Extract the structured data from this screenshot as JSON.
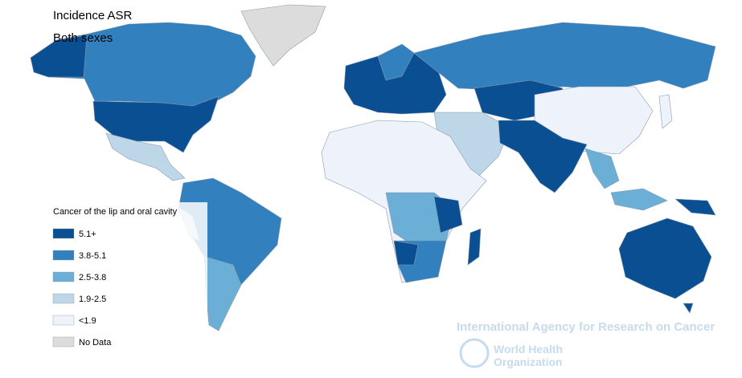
{
  "title": "Incidence ASR",
  "subtitle": "Both sexes",
  "legend": {
    "title": "Cancer of the lip and oral cavity",
    "items": [
      {
        "label": "5.1+",
        "color": "#0b4f93"
      },
      {
        "label": "3.8-5.1",
        "color": "#3280bd"
      },
      {
        "label": "2.5-3.8",
        "color": "#6baed6"
      },
      {
        "label": "1.9-2.5",
        "color": "#bed7e8"
      },
      {
        "label": "<1.9",
        "color": "#eef2fb"
      },
      {
        "label": "No Data",
        "color": "#dcdcdc"
      }
    ]
  },
  "watermark": {
    "agency": "International Agency for Research on Cancer",
    "who_line1": "World Health",
    "who_line2": "Organization"
  }
}
